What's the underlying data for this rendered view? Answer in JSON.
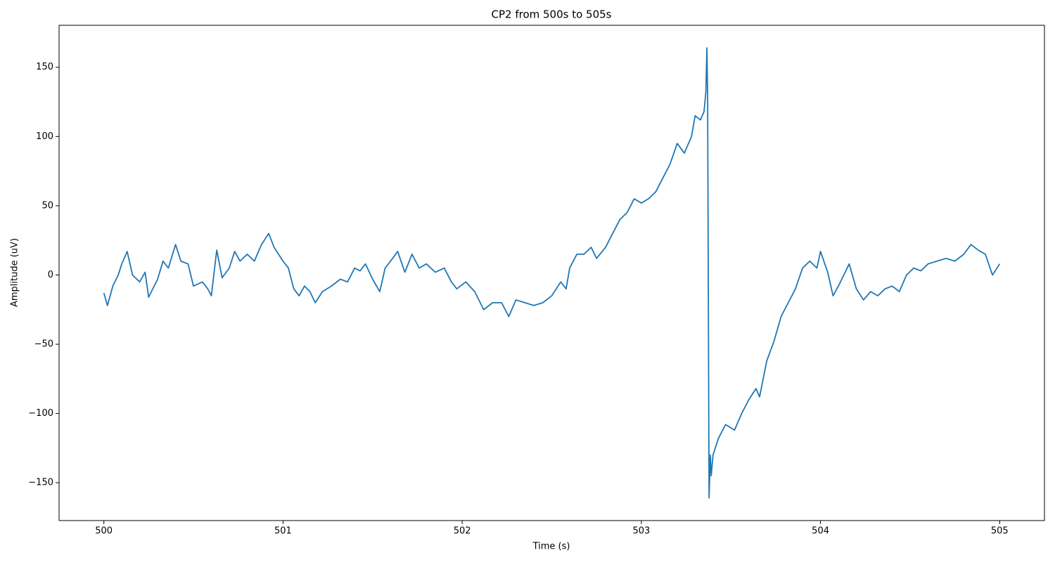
{
  "chart_data": {
    "type": "line",
    "title": "CP2 from 500s to 505s",
    "x_label": "Time (s)",
    "y_label": "Amplitude (uV)",
    "x": [
      500.0,
      500.02,
      500.05,
      500.08,
      500.1,
      500.13,
      500.16,
      500.2,
      500.23,
      500.25,
      500.3,
      500.33,
      500.36,
      500.4,
      500.43,
      500.47,
      500.5,
      500.55,
      500.58,
      500.6,
      500.63,
      500.66,
      500.7,
      500.73,
      500.76,
      500.8,
      500.84,
      500.88,
      500.92,
      500.95,
      501.0,
      501.03,
      501.06,
      501.09,
      501.12,
      501.15,
      501.18,
      501.22,
      501.27,
      501.32,
      501.36,
      501.4,
      501.43,
      501.46,
      501.5,
      501.54,
      501.57,
      501.6,
      501.64,
      501.68,
      501.72,
      501.76,
      501.8,
      501.85,
      501.9,
      501.94,
      501.97,
      502.02,
      502.07,
      502.12,
      502.17,
      502.22,
      502.26,
      502.3,
      502.35,
      502.4,
      502.45,
      502.5,
      502.55,
      502.58,
      502.6,
      502.64,
      502.68,
      502.72,
      502.75,
      502.8,
      502.84,
      502.88,
      502.92,
      502.96,
      503.0,
      503.04,
      503.08,
      503.12,
      503.16,
      503.2,
      503.24,
      503.28,
      503.3,
      503.33,
      503.35,
      503.36,
      503.366,
      503.37,
      503.378,
      503.385,
      503.39,
      503.4,
      503.43,
      503.47,
      503.52,
      503.56,
      503.6,
      503.64,
      503.66,
      503.7,
      503.74,
      503.78,
      503.82,
      503.86,
      503.9,
      503.94,
      503.98,
      504.0,
      504.04,
      504.07,
      504.1,
      504.13,
      504.16,
      504.2,
      504.24,
      504.28,
      504.32,
      504.36,
      504.4,
      504.44,
      504.48,
      504.52,
      504.56,
      504.6,
      504.65,
      504.7,
      504.75,
      504.8,
      504.84,
      504.88,
      504.92,
      504.96,
      505.0
    ],
    "values": [
      -13,
      -22,
      -8,
      0,
      8,
      17,
      0,
      -5,
      2,
      -16,
      -3,
      10,
      5,
      22,
      10,
      8,
      -8,
      -5,
      -10,
      -15,
      18,
      -2,
      5,
      17,
      10,
      15,
      10,
      22,
      30,
      20,
      10,
      5,
      -10,
      -15,
      -8,
      -12,
      -20,
      -12,
      -8,
      -3,
      -5,
      5,
      3,
      8,
      -3,
      -12,
      5,
      10,
      17,
      2,
      15,
      5,
      8,
      2,
      5,
      -5,
      -10,
      -5,
      -12,
      -25,
      -20,
      -20,
      -30,
      -18,
      -20,
      -22,
      -20,
      -15,
      -5,
      -10,
      5,
      15,
      15,
      20,
      12,
      20,
      30,
      40,
      45,
      55,
      52,
      55,
      60,
      70,
      80,
      95,
      88,
      100,
      115,
      112,
      118,
      132,
      164,
      128,
      -161,
      -130,
      -145,
      -130,
      -118,
      -108,
      -112,
      -100,
      -90,
      -82,
      -88,
      -62,
      -48,
      -30,
      -20,
      -10,
      5,
      10,
      5,
      17,
      2,
      -15,
      -8,
      0,
      8,
      -10,
      -18,
      -12,
      -15,
      -10,
      -8,
      -12,
      0,
      5,
      3,
      8,
      10,
      12,
      10,
      15,
      22,
      18,
      15,
      0,
      8
    ],
    "color": "#1f77b4",
    "xlim": [
      499.75,
      505.25
    ],
    "ylim": [
      -177.3,
      180.3
    ],
    "xticks": [
      500,
      501,
      502,
      503,
      504,
      505
    ],
    "yticks": [
      {
        "value": -150,
        "label": "−150"
      },
      {
        "value": -100,
        "label": "−100"
      },
      {
        "value": -50,
        "label": "−50"
      },
      0,
      50,
      100,
      150
    ],
    "grid": false
  }
}
